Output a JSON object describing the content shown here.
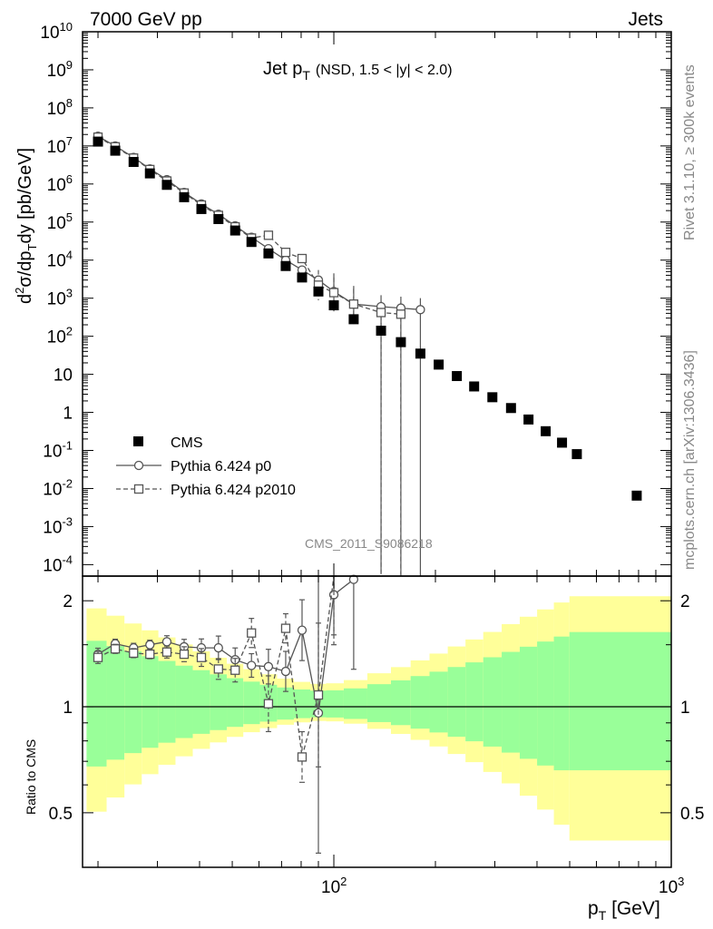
{
  "header": {
    "left": "7000 GeV pp",
    "right": "Jets",
    "rivet": "Rivet 3.1.10, ≥ 300k events",
    "mcplots": "mcplots.cern.ch [arXiv:1306.3436]",
    "watermark": "CMS_2011_S9086218",
    "title": "Jet p",
    "title_sub": "T",
    "title_range": "(NSD, 1.5 < |y| < 2.0)"
  },
  "colors": {
    "data": "#000000",
    "mc1": "#555555",
    "mc2": "#555555",
    "band_inner": "#99ff99",
    "band_outer": "#ffff99"
  },
  "chart_data": [
    {
      "type": "scatter",
      "panel": "main",
      "ylabel": "d²σ/dp_T dy [pb/GeV]",
      "xscale": "log",
      "yscale": "log",
      "xlim": [
        18,
        1000
      ],
      "ylim": [
        5e-05,
        10000000000
      ],
      "yticks": [
        "10^-4",
        "10^-3",
        "10^-2",
        "10^-1",
        "1",
        "10",
        "10^2",
        "10^3",
        "10^4",
        "10^5",
        "10^6",
        "10^7",
        "10^8",
        "10^9",
        "10^10"
      ],
      "legend": {
        "position": "middle-left",
        "entries": [
          "CMS",
          "Pythia 6.424 p0",
          "Pythia 6.424 p2010"
        ]
      },
      "series": [
        {
          "name": "CMS",
          "marker": "filled-square",
          "x": [
            20,
            22.5,
            25.5,
            28.5,
            32,
            36,
            40.5,
            45.5,
            51,
            57,
            64,
            72,
            80.5,
            90,
            100,
            114.5,
            138,
            158,
            180.5,
            204.5,
            231.5,
            260.5,
            295,
            335,
            377.5,
            424.5,
            474.5,
            525,
            790
          ],
          "y": [
            13000000,
            7500000,
            3800000,
            1900000,
            950000,
            450000,
            220000,
            120000,
            60000,
            30000,
            15000,
            7000,
            3500,
            1500,
            650,
            280,
            140,
            70,
            35,
            18,
            9,
            4.8,
            2.5,
            1.3,
            0.65,
            0.32,
            0.16,
            0.08,
            0.0065
          ]
        },
        {
          "name": "Pythia 6.424 p0",
          "marker": "open-circle",
          "x": [
            20,
            22.5,
            25.5,
            28.5,
            32,
            36,
            40.5,
            45.5,
            51,
            57,
            64,
            72,
            80.5,
            90,
            100,
            114.5,
            138,
            158,
            180.5
          ],
          "y": [
            18000000,
            10000000,
            5000000,
            2500000,
            1300000,
            600000,
            300000,
            160000,
            80000,
            40000,
            20000,
            10000,
            5500,
            3000,
            1500,
            700,
            600,
            550,
            500
          ]
        },
        {
          "name": "Pythia 6.424 p2010",
          "marker": "open-square",
          "x": [
            20,
            22.5,
            25.5,
            28.5,
            32,
            36,
            40.5,
            45.5,
            51,
            57,
            64,
            72,
            80.5,
            90,
            100,
            114.5,
            138,
            158
          ],
          "y": [
            17000000,
            9500000,
            4800000,
            2400000,
            1200000,
            580000,
            280000,
            150000,
            75000,
            38000,
            45000,
            16000,
            11000,
            2200,
            1400,
            700,
            420,
            380
          ]
        }
      ]
    },
    {
      "type": "line",
      "panel": "ratio",
      "ylabel": "Ratio to CMS",
      "xlabel": "p_T [GeV]",
      "xscale": "log",
      "xlim": [
        18,
        1000
      ],
      "ylim": [
        0.35,
        2.35
      ],
      "xticks": [
        "10^2",
        "10^3"
      ],
      "yticks": [
        "0.5",
        "1",
        "2"
      ],
      "series": [
        {
          "name": "Pythia 6.424 p0",
          "x": [
            20,
            22.5,
            25.5,
            28.5,
            32,
            36,
            40.5,
            45.5,
            51,
            57,
            64,
            72,
            80.5,
            90,
            100,
            114.5
          ],
          "y": [
            1.41,
            1.51,
            1.47,
            1.5,
            1.53,
            1.48,
            1.47,
            1.47,
            1.36,
            1.31,
            1.3,
            1.26,
            1.65,
            0.96,
            2.08,
            2.3
          ]
        },
        {
          "name": "Pythia 6.424 p2010",
          "x": [
            20,
            22.5,
            25.5,
            28.5,
            32,
            36,
            40.5,
            45.5,
            51,
            57,
            64,
            72,
            80.5,
            90,
            100
          ],
          "y": [
            1.38,
            1.46,
            1.42,
            1.41,
            1.43,
            1.41,
            1.38,
            1.28,
            1.27,
            1.62,
            1.02,
            1.67,
            0.72,
            1.08,
            2.4
          ]
        }
      ]
    }
  ]
}
